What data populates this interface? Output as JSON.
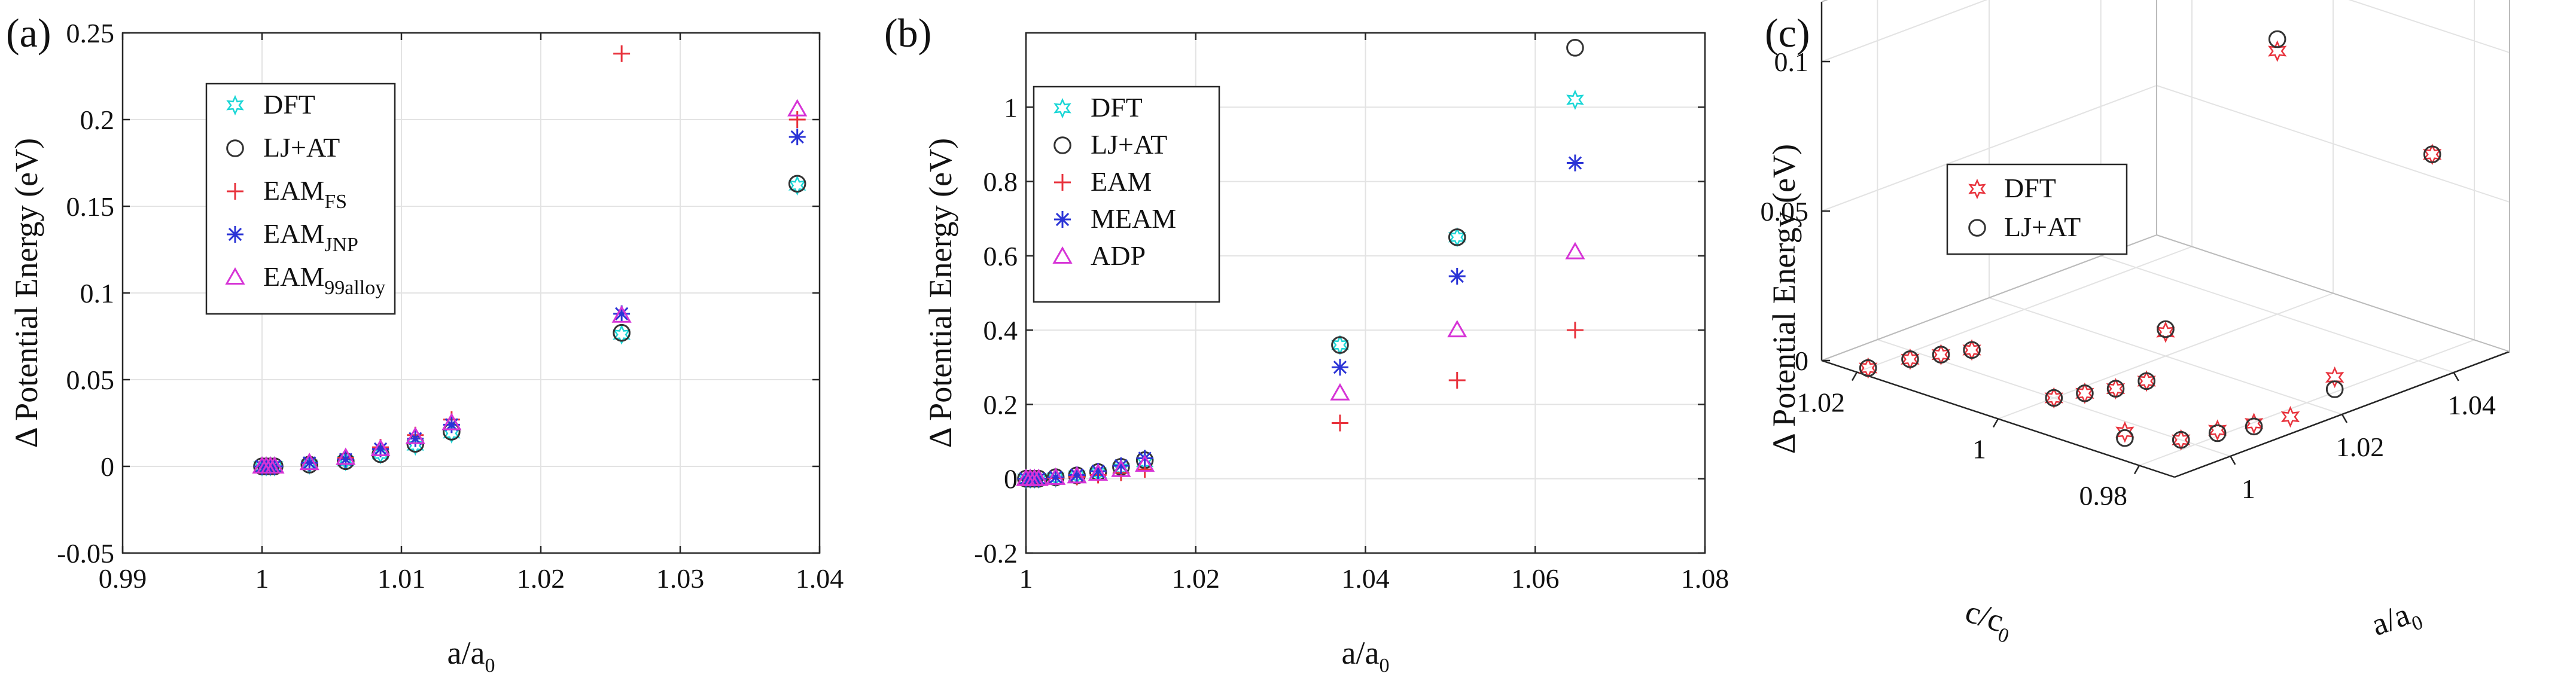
{
  "chart_data": [
    {
      "panel": "(a)",
      "type": "scatter",
      "xlabel": "a/a",
      "xlabel_sub": "0",
      "ylabel": "Δ Potential Energy (eV)",
      "xlim": [
        0.99,
        1.04
      ],
      "ylim": [
        -0.05,
        0.25
      ],
      "xticks": [
        0.99,
        1.0,
        1.01,
        1.02,
        1.03,
        1.04
      ],
      "xtick_labels": [
        "0.99",
        "1",
        "1.01",
        "1.02",
        "1.03",
        "1.04"
      ],
      "yticks": [
        -0.05,
        0,
        0.05,
        0.1,
        0.15,
        0.2,
        0.25
      ],
      "ytick_labels": [
        "-0.05",
        "0",
        "0.05",
        "0.1",
        "0.15",
        "0.2",
        "0.25"
      ],
      "grid": true,
      "legend_position": "top-left",
      "series": [
        {
          "name": "DFT",
          "sub": "",
          "marker": "hexagram",
          "color": "#1ad6d6",
          "x": [
            1.0,
            1.0003,
            1.0006,
            1.0009,
            1.0034,
            1.006,
            1.0085,
            1.011,
            1.0136,
            1.0258,
            1.0384
          ],
          "y": [
            0.0,
            0.0,
            0.0,
            0.0,
            0.001,
            0.003,
            0.007,
            0.012,
            0.019,
            0.076,
            0.162
          ]
        },
        {
          "name": "LJ+AT",
          "sub": "",
          "marker": "circle",
          "color": "#333333",
          "x": [
            1.0,
            1.0003,
            1.0006,
            1.0009,
            1.0034,
            1.006,
            1.0085,
            1.011,
            1.0136,
            1.0258,
            1.0384
          ],
          "y": [
            0.0,
            0.0,
            0.0,
            0.0,
            0.001,
            0.003,
            0.007,
            0.013,
            0.02,
            0.077,
            0.163
          ]
        },
        {
          "name": "EAM",
          "sub": "FS",
          "marker": "plus",
          "color": "#e8323c",
          "x": [
            1.0,
            1.0003,
            1.0006,
            1.0009,
            1.0034,
            1.006,
            1.0085,
            1.011,
            1.0136,
            1.0258,
            1.0384
          ],
          "y": [
            0.0,
            0.0,
            0.0,
            0.0,
            0.002,
            0.005,
            0.011,
            0.018,
            0.027,
            0.238,
            0.2
          ]
        },
        {
          "name": "EAM",
          "sub": "JNP",
          "marker": "asterisk",
          "color": "#2b34d6",
          "x": [
            1.0,
            1.0003,
            1.0006,
            1.0009,
            1.0034,
            1.006,
            1.0085,
            1.011,
            1.0136,
            1.0258,
            1.0384
          ],
          "y": [
            0.0,
            0.0,
            0.0,
            0.0,
            0.002,
            0.004,
            0.01,
            0.016,
            0.024,
            0.088,
            0.19
          ]
        },
        {
          "name": "EAM",
          "sub": "99alloy",
          "marker": "triangle",
          "color": "#d633d6",
          "x": [
            1.0,
            1.0003,
            1.0006,
            1.0009,
            1.0034,
            1.006,
            1.0085,
            1.011,
            1.0136,
            1.0258,
            1.0384
          ],
          "y": [
            0.0,
            0.0,
            0.0,
            0.0,
            0.002,
            0.005,
            0.01,
            0.017,
            0.025,
            0.087,
            0.206
          ]
        }
      ]
    },
    {
      "panel": "(b)",
      "type": "scatter",
      "xlabel": "a/a",
      "xlabel_sub": "0",
      "ylabel": "Δ Potential Energy (eV)",
      "xlim": [
        1.0,
        1.08
      ],
      "ylim": [
        -0.2,
        1.2
      ],
      "xticks": [
        1.0,
        1.02,
        1.04,
        1.06,
        1.08
      ],
      "xtick_labels": [
        "1",
        "1.02",
        "1.04",
        "1.06",
        "1.08"
      ],
      "yticks": [
        -0.2,
        0,
        0.2,
        0.4,
        0.6,
        0.8,
        1.0
      ],
      "ytick_labels": [
        "-0.2",
        "0",
        "0.2",
        "0.4",
        "0.6",
        "0.8",
        "1"
      ],
      "grid": true,
      "legend_position": "top-left",
      "series": [
        {
          "name": "DFT",
          "sub": "",
          "marker": "hexagram",
          "color": "#1ad6d6",
          "x": [
            1.0,
            1.0005,
            1.001,
            1.0015,
            1.0035,
            1.006,
            1.0085,
            1.0112,
            1.014,
            1.037,
            1.0508,
            1.0647
          ],
          "y": [
            0.0,
            0.0,
            0.0,
            0.0,
            0.003,
            0.008,
            0.016,
            0.028,
            0.045,
            0.36,
            0.65,
            1.02
          ]
        },
        {
          "name": "LJ+AT",
          "sub": "",
          "marker": "circle",
          "color": "#333333",
          "x": [
            1.0,
            1.0005,
            1.001,
            1.0015,
            1.0035,
            1.006,
            1.0085,
            1.0112,
            1.014,
            1.037,
            1.0508,
            1.0647
          ],
          "y": [
            0.0,
            0.0,
            0.0,
            0.0,
            0.004,
            0.009,
            0.018,
            0.032,
            0.05,
            0.36,
            0.65,
            1.16
          ]
        },
        {
          "name": "EAM",
          "sub": "",
          "marker": "plus",
          "color": "#e8323c",
          "x": [
            1.0,
            1.0005,
            1.001,
            1.0015,
            1.0035,
            1.006,
            1.0085,
            1.0112,
            1.014,
            1.037,
            1.0508,
            1.0647
          ],
          "y": [
            0.0,
            0.0,
            0.0,
            0.0,
            0.002,
            0.005,
            0.01,
            0.016,
            0.025,
            0.15,
            0.265,
            0.4
          ]
        },
        {
          "name": "MEAM",
          "sub": "",
          "marker": "asterisk",
          "color": "#2b34d6",
          "x": [
            1.0,
            1.0005,
            1.001,
            1.0015,
            1.0035,
            1.006,
            1.0085,
            1.0112,
            1.014,
            1.037,
            1.0508,
            1.0647
          ],
          "y": [
            0.0,
            0.0,
            0.0,
            0.0,
            0.004,
            0.01,
            0.02,
            0.035,
            0.055,
            0.3,
            0.545,
            0.85
          ]
        },
        {
          "name": "ADP",
          "sub": "",
          "marker": "triangle",
          "color": "#d633d6",
          "x": [
            1.0,
            1.0005,
            1.001,
            1.0015,
            1.0035,
            1.006,
            1.0085,
            1.0112,
            1.014,
            1.037,
            1.0508,
            1.0647
          ],
          "y": [
            0.0,
            0.0,
            0.0,
            0.0,
            0.003,
            0.007,
            0.014,
            0.024,
            0.038,
            0.23,
            0.4,
            0.61
          ]
        }
      ]
    },
    {
      "panel": "(c)",
      "type": "scatter3d",
      "xlabel": "a/a",
      "xlabel_sub": "0",
      "ylabel": "c/c",
      "ylabel_sub": "0",
      "zlabel": "Δ Potential Energy (eV)",
      "xlim": [
        0.99,
        1.05
      ],
      "ylim": [
        0.975,
        1.025
      ],
      "zlim": [
        0,
        0.12
      ],
      "xticks": [
        1.0,
        1.02,
        1.04
      ],
      "xtick_labels": [
        "1",
        "1.02",
        "1.04"
      ],
      "yticks": [
        0.98,
        1.0,
        1.02
      ],
      "ytick_labels": [
        "0.98",
        "1",
        "1.02"
      ],
      "zticks": [
        0,
        0.05,
        0.1
      ],
      "ztick_labels": [
        "0",
        "0.05",
        "0.1"
      ],
      "grid": true,
      "legend_position": "top-left",
      "series": [
        {
          "name": "DFT",
          "sub": "",
          "marker": "hexagram",
          "color": "#e8323c",
          "points": [
            [
              0.992,
              1.02,
              0.0
            ],
            [
              0.997,
              1.018,
              0.001
            ],
            [
              1.0,
              1.016,
              0.002
            ],
            [
              1.003,
              1.014,
              0.003
            ],
            [
              1.0,
              1.0,
              0.0
            ],
            [
              1.003,
              0.998,
              0.001
            ],
            [
              1.006,
              0.996,
              0.002
            ],
            [
              1.009,
              0.994,
              0.004
            ],
            [
              1.0,
              0.982,
              0.0
            ],
            [
              1.004,
              0.98,
              0.002
            ],
            [
              1.008,
              0.978,
              0.003
            ],
            [
              1.012,
              0.976,
              0.004
            ],
            [
              0.995,
              0.986,
              0.003
            ],
            [
              1.02,
              1.02,
              0.03
            ],
            [
              1.02,
              1.0,
              0.008
            ],
            [
              1.025,
              0.98,
              0.005
            ],
            [
              1.04,
              1.02,
              0.1
            ],
            [
              1.04,
              1.0,
              0.088
            ],
            [
              1.045,
              0.982,
              0.064
            ]
          ]
        },
        {
          "name": "LJ+AT",
          "sub": "",
          "marker": "circle",
          "color": "#333333",
          "points": [
            [
              0.992,
              1.02,
              0.0
            ],
            [
              0.997,
              1.018,
              0.001
            ],
            [
              1.0,
              1.016,
              0.002
            ],
            [
              1.003,
              1.014,
              0.003
            ],
            [
              1.0,
              1.0,
              0.0
            ],
            [
              1.003,
              0.998,
              0.001
            ],
            [
              1.006,
              0.996,
              0.002
            ],
            [
              1.009,
              0.994,
              0.004
            ],
            [
              1.0,
              0.982,
              0.0
            ],
            [
              1.004,
              0.98,
              0.001
            ],
            [
              1.008,
              0.978,
              0.002
            ],
            [
              0.995,
              0.986,
              0.001
            ],
            [
              1.02,
              1.02,
              0.032
            ],
            [
              1.02,
              1.0,
              0.009
            ],
            [
              1.025,
              0.98,
              0.001
            ],
            [
              1.04,
              1.02,
              0.102
            ],
            [
              1.04,
              1.0,
              0.092
            ],
            [
              1.045,
              0.982,
              0.064
            ]
          ]
        }
      ]
    }
  ]
}
